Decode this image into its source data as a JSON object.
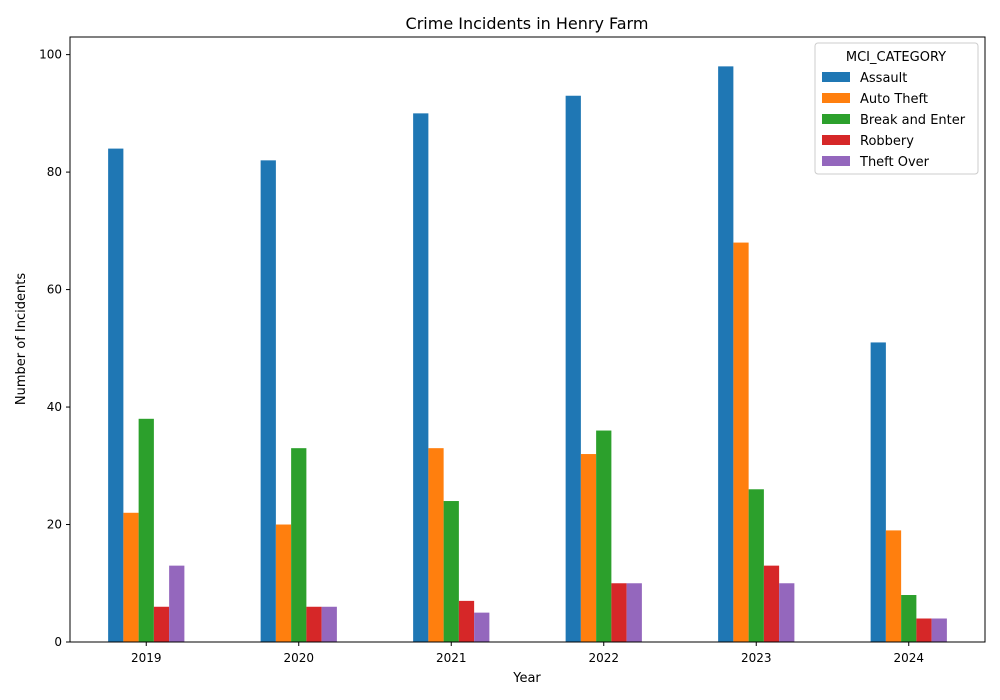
{
  "chart_data": {
    "type": "bar",
    "title": "Crime Incidents in Henry Farm",
    "xlabel": "Year",
    "ylabel": "Number of Incidents",
    "categories": [
      "2019",
      "2020",
      "2021",
      "2022",
      "2023",
      "2024"
    ],
    "ylim": [
      0,
      103
    ],
    "yticks": [
      0,
      20,
      40,
      60,
      80,
      100
    ],
    "legend": {
      "title": "MCI_CATEGORY",
      "position": "top-right"
    },
    "series": [
      {
        "name": "Assault",
        "color": "#1f77b4",
        "values": [
          84,
          82,
          90,
          93,
          98,
          51
        ]
      },
      {
        "name": "Auto Theft",
        "color": "#ff7f0e",
        "values": [
          22,
          20,
          33,
          32,
          68,
          19
        ]
      },
      {
        "name": "Break and Enter",
        "color": "#2ca02c",
        "values": [
          38,
          33,
          24,
          36,
          26,
          8
        ]
      },
      {
        "name": "Robbery",
        "color": "#d62728",
        "values": [
          6,
          6,
          7,
          10,
          13,
          4
        ]
      },
      {
        "name": "Theft Over",
        "color": "#9467bd",
        "values": [
          13,
          6,
          5,
          10,
          10,
          4
        ]
      }
    ]
  }
}
